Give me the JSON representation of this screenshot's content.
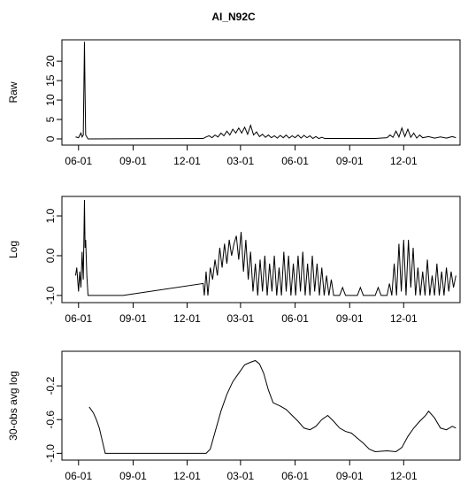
{
  "chart_data": [
    {
      "type": "line",
      "title": "AI_N92C",
      "ylabel": "Raw",
      "color": "#000000",
      "xlim": [
        -28,
        643
      ],
      "ylim": [
        -1.6,
        25.5
      ],
      "yticks": [
        0,
        5,
        10,
        15,
        20
      ],
      "xticks": [
        {
          "value": 0,
          "label": "06-01"
        },
        {
          "value": 92,
          "label": "09-01"
        },
        {
          "value": 183,
          "label": "12-01"
        },
        {
          "value": 273,
          "label": "03-01"
        },
        {
          "value": 365,
          "label": "06-01"
        },
        {
          "value": 457,
          "label": "09-01"
        },
        {
          "value": 548,
          "label": "12-01"
        }
      ],
      "x": [
        -5,
        0,
        4,
        6,
        8,
        10,
        11,
        12,
        14,
        16,
        210,
        215,
        220,
        225,
        230,
        235,
        240,
        245,
        250,
        255,
        260,
        265,
        270,
        275,
        280,
        285,
        290,
        295,
        300,
        305,
        310,
        315,
        320,
        325,
        330,
        335,
        340,
        345,
        350,
        355,
        360,
        365,
        370,
        375,
        380,
        385,
        390,
        395,
        400,
        405,
        410,
        415,
        430,
        460,
        500,
        520,
        525,
        530,
        535,
        540,
        545,
        550,
        555,
        560,
        565,
        570,
        575,
        580,
        590,
        600,
        610,
        620,
        630,
        636
      ],
      "values": [
        0.5,
        0.3,
        1.5,
        0.5,
        1.0,
        25,
        12,
        1,
        0.5,
        0,
        0.1,
        0.5,
        0.8,
        0.3,
        1.0,
        0.5,
        1.5,
        0.8,
        2.0,
        1.0,
        2.5,
        1.5,
        2.8,
        1.5,
        3.0,
        1.2,
        3.5,
        1.0,
        1.8,
        0.6,
        1.2,
        0.4,
        1.0,
        0.3,
        0.8,
        0.2,
        0.9,
        0.3,
        1.0,
        0.2,
        0.8,
        0.3,
        1.0,
        0.2,
        0.9,
        0.3,
        0.8,
        0.1,
        0.6,
        0.1,
        0.4,
        0.1,
        0.1,
        0.1,
        0.1,
        0.3,
        1.0,
        0.4,
        2.0,
        0.5,
        2.8,
        0.6,
        2.5,
        0.4,
        1.5,
        0.2,
        1.0,
        0.3,
        0.6,
        0.2,
        0.5,
        0.2,
        0.6,
        0.3
      ]
    },
    {
      "type": "line",
      "ylabel": "Log",
      "color": "#000000",
      "xlim": [
        -28,
        643
      ],
      "ylim": [
        -1.18,
        1.49
      ],
      "yticks": [
        {
          "value": -1,
          "label": "-1.0"
        },
        {
          "value": 0,
          "label": "0.0"
        },
        {
          "value": 1,
          "label": "1.0"
        }
      ],
      "xticks": [
        {
          "value": 0,
          "label": "06-01"
        },
        {
          "value": 92,
          "label": "09-01"
        },
        {
          "value": 183,
          "label": "12-01"
        },
        {
          "value": 273,
          "label": "03-01"
        },
        {
          "value": 365,
          "label": "06-01"
        },
        {
          "value": 457,
          "label": "09-01"
        },
        {
          "value": 548,
          "label": "12-01"
        }
      ],
      "x": [
        -5,
        -3,
        0,
        2,
        4,
        6,
        8,
        10,
        11,
        12,
        14,
        16,
        75,
        210,
        212,
        215,
        218,
        222,
        226,
        230,
        234,
        238,
        242,
        246,
        250,
        254,
        258,
        262,
        266,
        270,
        274,
        278,
        282,
        286,
        290,
        294,
        298,
        302,
        306,
        310,
        314,
        318,
        322,
        326,
        330,
        334,
        338,
        342,
        346,
        350,
        354,
        358,
        362,
        366,
        370,
        374,
        378,
        382,
        386,
        390,
        394,
        398,
        402,
        406,
        410,
        414,
        418,
        422,
        426,
        430,
        440,
        445,
        450,
        470,
        475,
        480,
        500,
        505,
        510,
        520,
        524,
        528,
        532,
        536,
        540,
        544,
        548,
        552,
        556,
        560,
        564,
        568,
        572,
        576,
        580,
        584,
        588,
        592,
        596,
        600,
        604,
        608,
        612,
        616,
        620,
        624,
        628,
        632,
        636
      ],
      "values": [
        -0.5,
        -0.3,
        -0.9,
        -0.4,
        -0.8,
        0.1,
        -0.6,
        1.4,
        0.2,
        0.4,
        -0.5,
        -1.0,
        -1.0,
        -0.7,
        -1.0,
        -0.4,
        -1.0,
        -0.3,
        -0.6,
        -0.1,
        -0.5,
        0.2,
        -0.3,
        0.3,
        -0.2,
        0.4,
        0.0,
        0.3,
        0.5,
        -0.1,
        0.6,
        -0.4,
        0.4,
        -0.6,
        0.1,
        -0.9,
        -0.2,
        -1.0,
        -0.1,
        -0.9,
        0.0,
        -1.0,
        -0.2,
        -0.9,
        0.0,
        -1.0,
        -0.3,
        -1.0,
        0.1,
        -0.9,
        0.0,
        -1.0,
        -0.2,
        -1.0,
        0.0,
        -0.9,
        0.1,
        -1.0,
        -0.2,
        -1.0,
        0.0,
        -0.9,
        -0.2,
        -1.0,
        -0.3,
        -1.0,
        -0.5,
        -1.0,
        -0.6,
        -1.0,
        -1.0,
        -0.8,
        -1.0,
        -1.0,
        -0.8,
        -1.0,
        -1.0,
        -0.8,
        -1.0,
        -1.0,
        -0.7,
        -1.0,
        -0.2,
        -1.0,
        0.3,
        -0.9,
        0.4,
        -1.0,
        0.4,
        -0.8,
        0.2,
        -1.0,
        -0.3,
        -1.0,
        -0.4,
        -1.0,
        -0.1,
        -1.0,
        -0.5,
        -1.0,
        -0.2,
        -1.0,
        -0.4,
        -1.0,
        -0.3,
        -0.9,
        -0.4,
        -0.8,
        -0.5
      ]
    },
    {
      "type": "line",
      "ylabel": "30-obs avg log",
      "color": "#000000",
      "xlim": [
        -28,
        643
      ],
      "ylim": [
        -1.08,
        0.21
      ],
      "yticks": [
        {
          "value": -1,
          "label": "-1.0"
        },
        {
          "value": -0.6,
          "label": "-0.6"
        },
        {
          "value": -0.2,
          "label": "-0.2"
        }
      ],
      "xticks": [
        {
          "value": 0,
          "label": "06-01"
        },
        {
          "value": 92,
          "label": "09-01"
        },
        {
          "value": 183,
          "label": "12-01"
        },
        {
          "value": 273,
          "label": "03-01"
        },
        {
          "value": 365,
          "label": "06-01"
        },
        {
          "value": 457,
          "label": "09-01"
        },
        {
          "value": 548,
          "label": "12-01"
        }
      ],
      "x": [
        18,
        25,
        30,
        35,
        40,
        45,
        215,
        222,
        230,
        240,
        250,
        260,
        270,
        280,
        290,
        298,
        305,
        312,
        320,
        328,
        340,
        350,
        360,
        370,
        380,
        390,
        400,
        410,
        420,
        430,
        440,
        450,
        460,
        470,
        480,
        490,
        500,
        520,
        535,
        545,
        555,
        565,
        575,
        585,
        590,
        600,
        610,
        620,
        630,
        636
      ],
      "values": [
        -0.45,
        -0.52,
        -0.6,
        -0.7,
        -0.85,
        -1.0,
        -1.0,
        -0.95,
        -0.75,
        -0.5,
        -0.3,
        -0.15,
        -0.05,
        0.05,
        0.08,
        0.1,
        0.06,
        -0.05,
        -0.25,
        -0.4,
        -0.44,
        -0.48,
        -0.55,
        -0.62,
        -0.7,
        -0.72,
        -0.68,
        -0.6,
        -0.55,
        -0.62,
        -0.7,
        -0.74,
        -0.76,
        -0.82,
        -0.88,
        -0.95,
        -0.98,
        -0.97,
        -0.98,
        -0.93,
        -0.8,
        -0.7,
        -0.62,
        -0.55,
        -0.5,
        -0.58,
        -0.7,
        -0.72,
        -0.68,
        -0.7
      ]
    }
  ]
}
